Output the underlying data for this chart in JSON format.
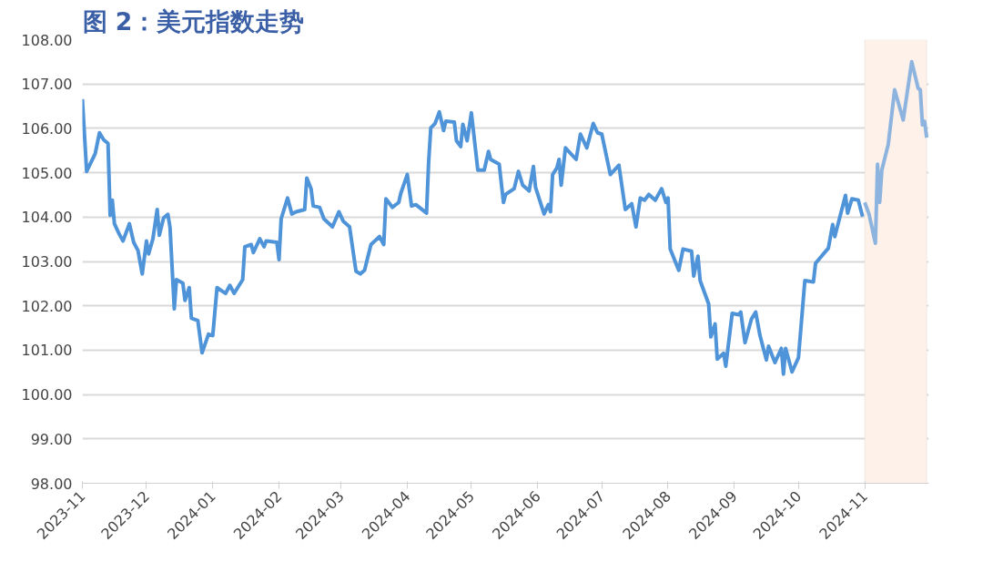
{
  "chart_data": {
    "type": "line",
    "title": "图 2：美元指数走势",
    "x": [
      "2023-11-01",
      "2023-11-03",
      "2023-11-07",
      "2023-11-09",
      "2023-11-11",
      "2023-11-13",
      "2023-11-14",
      "2023-11-15",
      "2023-11-16",
      "2023-11-18",
      "2023-11-20",
      "2023-11-23",
      "2023-11-25",
      "2023-11-27",
      "2023-11-29",
      "2023-12-01",
      "2023-12-02",
      "2023-12-04",
      "2023-12-06",
      "2023-12-07",
      "2023-12-09",
      "2023-12-11",
      "2023-12-12",
      "2023-12-14",
      "2023-12-15",
      "2023-12-18",
      "2023-12-19",
      "2023-12-21",
      "2023-12-22",
      "2023-12-25",
      "2023-12-27",
      "2023-12-30",
      "2024-01-01",
      "2024-01-03",
      "2024-01-07",
      "2024-01-09",
      "2024-01-11",
      "2024-01-15",
      "2024-01-16",
      "2024-01-19",
      "2024-01-20",
      "2024-01-23",
      "2024-01-25",
      "2024-01-26",
      "2024-01-31",
      "2024-02-01",
      "2024-02-02",
      "2024-02-05",
      "2024-02-07",
      "2024-02-09",
      "2024-02-13",
      "2024-02-14",
      "2024-02-16",
      "2024-02-17",
      "2024-02-20",
      "2024-02-22",
      "2024-02-26",
      "2024-02-29",
      "2024-03-02",
      "2024-03-05",
      "2024-03-08",
      "2024-03-10",
      "2024-03-12",
      "2024-03-15",
      "2024-03-19",
      "2024-03-21",
      "2024-03-22",
      "2024-03-25",
      "2024-03-28",
      "2024-03-29",
      "2024-04-01",
      "2024-04-03",
      "2024-04-05",
      "2024-04-10",
      "2024-04-11",
      "2024-04-12",
      "2024-04-14",
      "2024-04-16",
      "2024-04-18",
      "2024-04-19",
      "2024-04-23",
      "2024-04-24",
      "2024-04-26",
      "2024-04-27",
      "2024-04-29",
      "2024-05-01",
      "2024-05-04",
      "2024-05-07",
      "2024-05-09",
      "2024-05-10",
      "2024-05-14",
      "2024-05-16",
      "2024-05-17",
      "2024-05-21",
      "2024-05-23",
      "2024-05-25",
      "2024-05-28",
      "2024-05-30",
      "2024-05-31",
      "2024-06-04",
      "2024-06-06",
      "2024-06-07",
      "2024-06-08",
      "2024-06-10",
      "2024-06-11",
      "2024-06-12",
      "2024-06-14",
      "2024-06-19",
      "2024-06-21",
      "2024-06-24",
      "2024-06-27",
      "2024-06-29",
      "2024-07-01",
      "2024-07-05",
      "2024-07-09",
      "2024-07-12",
      "2024-07-15",
      "2024-07-17",
      "2024-07-19",
      "2024-07-21",
      "2024-07-23",
      "2024-07-26",
      "2024-07-29",
      "2024-07-31",
      "2024-08-01",
      "2024-08-02",
      "2024-08-06",
      "2024-08-08",
      "2024-08-12",
      "2024-08-13",
      "2024-08-15",
      "2024-08-16",
      "2024-08-20",
      "2024-08-21",
      "2024-08-23",
      "2024-08-24",
      "2024-08-27",
      "2024-08-28",
      "2024-08-31",
      "2024-09-03",
      "2024-09-04",
      "2024-09-06",
      "2024-09-09",
      "2024-09-11",
      "2024-09-13",
      "2024-09-16",
      "2024-09-17",
      "2024-09-20",
      "2024-09-23",
      "2024-09-24",
      "2024-09-25",
      "2024-09-28",
      "2024-10-01",
      "2024-10-04",
      "2024-10-08",
      "2024-10-09",
      "2024-10-15",
      "2024-10-17",
      "2024-10-18",
      "2024-10-23",
      "2024-10-24",
      "2024-10-26",
      "2024-10-29",
      "2024-10-31"
    ],
    "series": [
      {
        "color": "#4f94d8",
        "values": [
          106.66,
          105.03,
          105.43,
          105.9,
          105.74,
          105.66,
          104.04,
          104.38,
          103.85,
          103.64,
          103.46,
          103.85,
          103.43,
          103.25,
          102.72,
          103.46,
          103.17,
          103.51,
          104.17,
          103.59,
          103.98,
          104.06,
          103.77,
          101.93,
          102.59,
          102.51,
          102.12,
          102.41,
          101.72,
          101.67,
          100.94,
          101.36,
          101.33,
          102.41,
          102.28,
          102.46,
          102.28,
          102.59,
          103.33,
          103.38,
          103.2,
          103.51,
          103.33,
          103.46,
          103.43,
          103.04,
          103.96,
          104.43,
          104.07,
          104.12,
          104.17,
          104.88,
          104.64,
          104.25,
          104.22,
          103.96,
          103.78,
          104.12,
          103.91,
          103.78,
          102.78,
          102.72,
          102.8,
          103.38,
          103.56,
          103.38,
          104.41,
          104.22,
          104.33,
          104.54,
          104.96,
          104.25,
          104.28,
          104.09,
          105.24,
          106.01,
          106.11,
          106.37,
          105.95,
          106.16,
          106.14,
          105.72,
          105.59,
          106.09,
          105.72,
          106.35,
          105.06,
          105.06,
          105.48,
          105.3,
          105.19,
          104.33,
          104.51,
          104.64,
          105.03,
          104.72,
          104.59,
          105.14,
          104.67,
          104.07,
          104.28,
          104.12,
          104.96,
          105.11,
          105.3,
          104.72,
          105.56,
          105.3,
          105.87,
          105.56,
          106.11,
          105.9,
          105.87,
          104.96,
          105.17,
          104.17,
          104.3,
          103.78,
          104.43,
          104.38,
          104.51,
          104.38,
          104.64,
          104.33,
          104.43,
          103.28,
          102.8,
          103.28,
          103.23,
          102.67,
          103.12,
          102.57,
          102.04,
          101.3,
          101.59,
          100.8,
          100.93,
          100.64,
          101.83,
          101.8,
          101.86,
          101.17,
          101.7,
          101.86,
          101.33,
          100.78,
          101.09,
          100.72,
          101.04,
          100.46,
          101.04,
          100.51,
          100.83,
          102.57,
          102.54,
          102.96,
          103.3,
          103.83,
          103.56,
          104.49,
          104.09,
          104.41,
          104.38,
          104.01
        ]
      },
      {
        "color": "#8db4df",
        "x": [
          "2024-11-01",
          "2024-11-03",
          "2024-11-06",
          "2024-11-07",
          "2024-11-08",
          "2024-11-09",
          "2024-11-12",
          "2024-11-15",
          "2024-11-19",
          "2024-11-23",
          "2024-11-26",
          "2024-11-27",
          "2024-11-28",
          "2024-11-29",
          "2024-11-30"
        ],
        "values": [
          104.33,
          104.07,
          103.41,
          105.19,
          104.33,
          105.06,
          105.64,
          106.87,
          106.19,
          107.5,
          106.9,
          106.87,
          106.08,
          106.16,
          105.79
        ]
      }
    ],
    "xlim": [
      "2023-11-01",
      "2024-12-01"
    ],
    "xticks": [
      "2023-11",
      "2023-12",
      "2024-01",
      "2024-02",
      "2024-03",
      "2024-04",
      "2024-05",
      "2024-06",
      "2024-07",
      "2024-08",
      "2024-09",
      "2024-10",
      "2024-11"
    ],
    "ylim": [
      98,
      108
    ],
    "yticks": [
      {
        "value": 98,
        "label": "98.00"
      },
      {
        "value": 99,
        "label": "99.00"
      },
      {
        "value": 100,
        "label": "100.00"
      },
      {
        "value": 101,
        "label": "101.00"
      },
      {
        "value": 102,
        "label": "102.00"
      },
      {
        "value": 103,
        "label": "103.00"
      },
      {
        "value": 104,
        "label": "104.00"
      },
      {
        "value": 105,
        "label": "105.00"
      },
      {
        "value": 106,
        "label": "106.00"
      },
      {
        "value": 107,
        "label": "107.00"
      },
      {
        "value": 108,
        "label": "108.00"
      }
    ],
    "bands": [
      {
        "axis": "x",
        "from": "2024-11-01",
        "to": "2024-11-30",
        "color": "#fdf1e9"
      }
    ],
    "grid": "y"
  }
}
